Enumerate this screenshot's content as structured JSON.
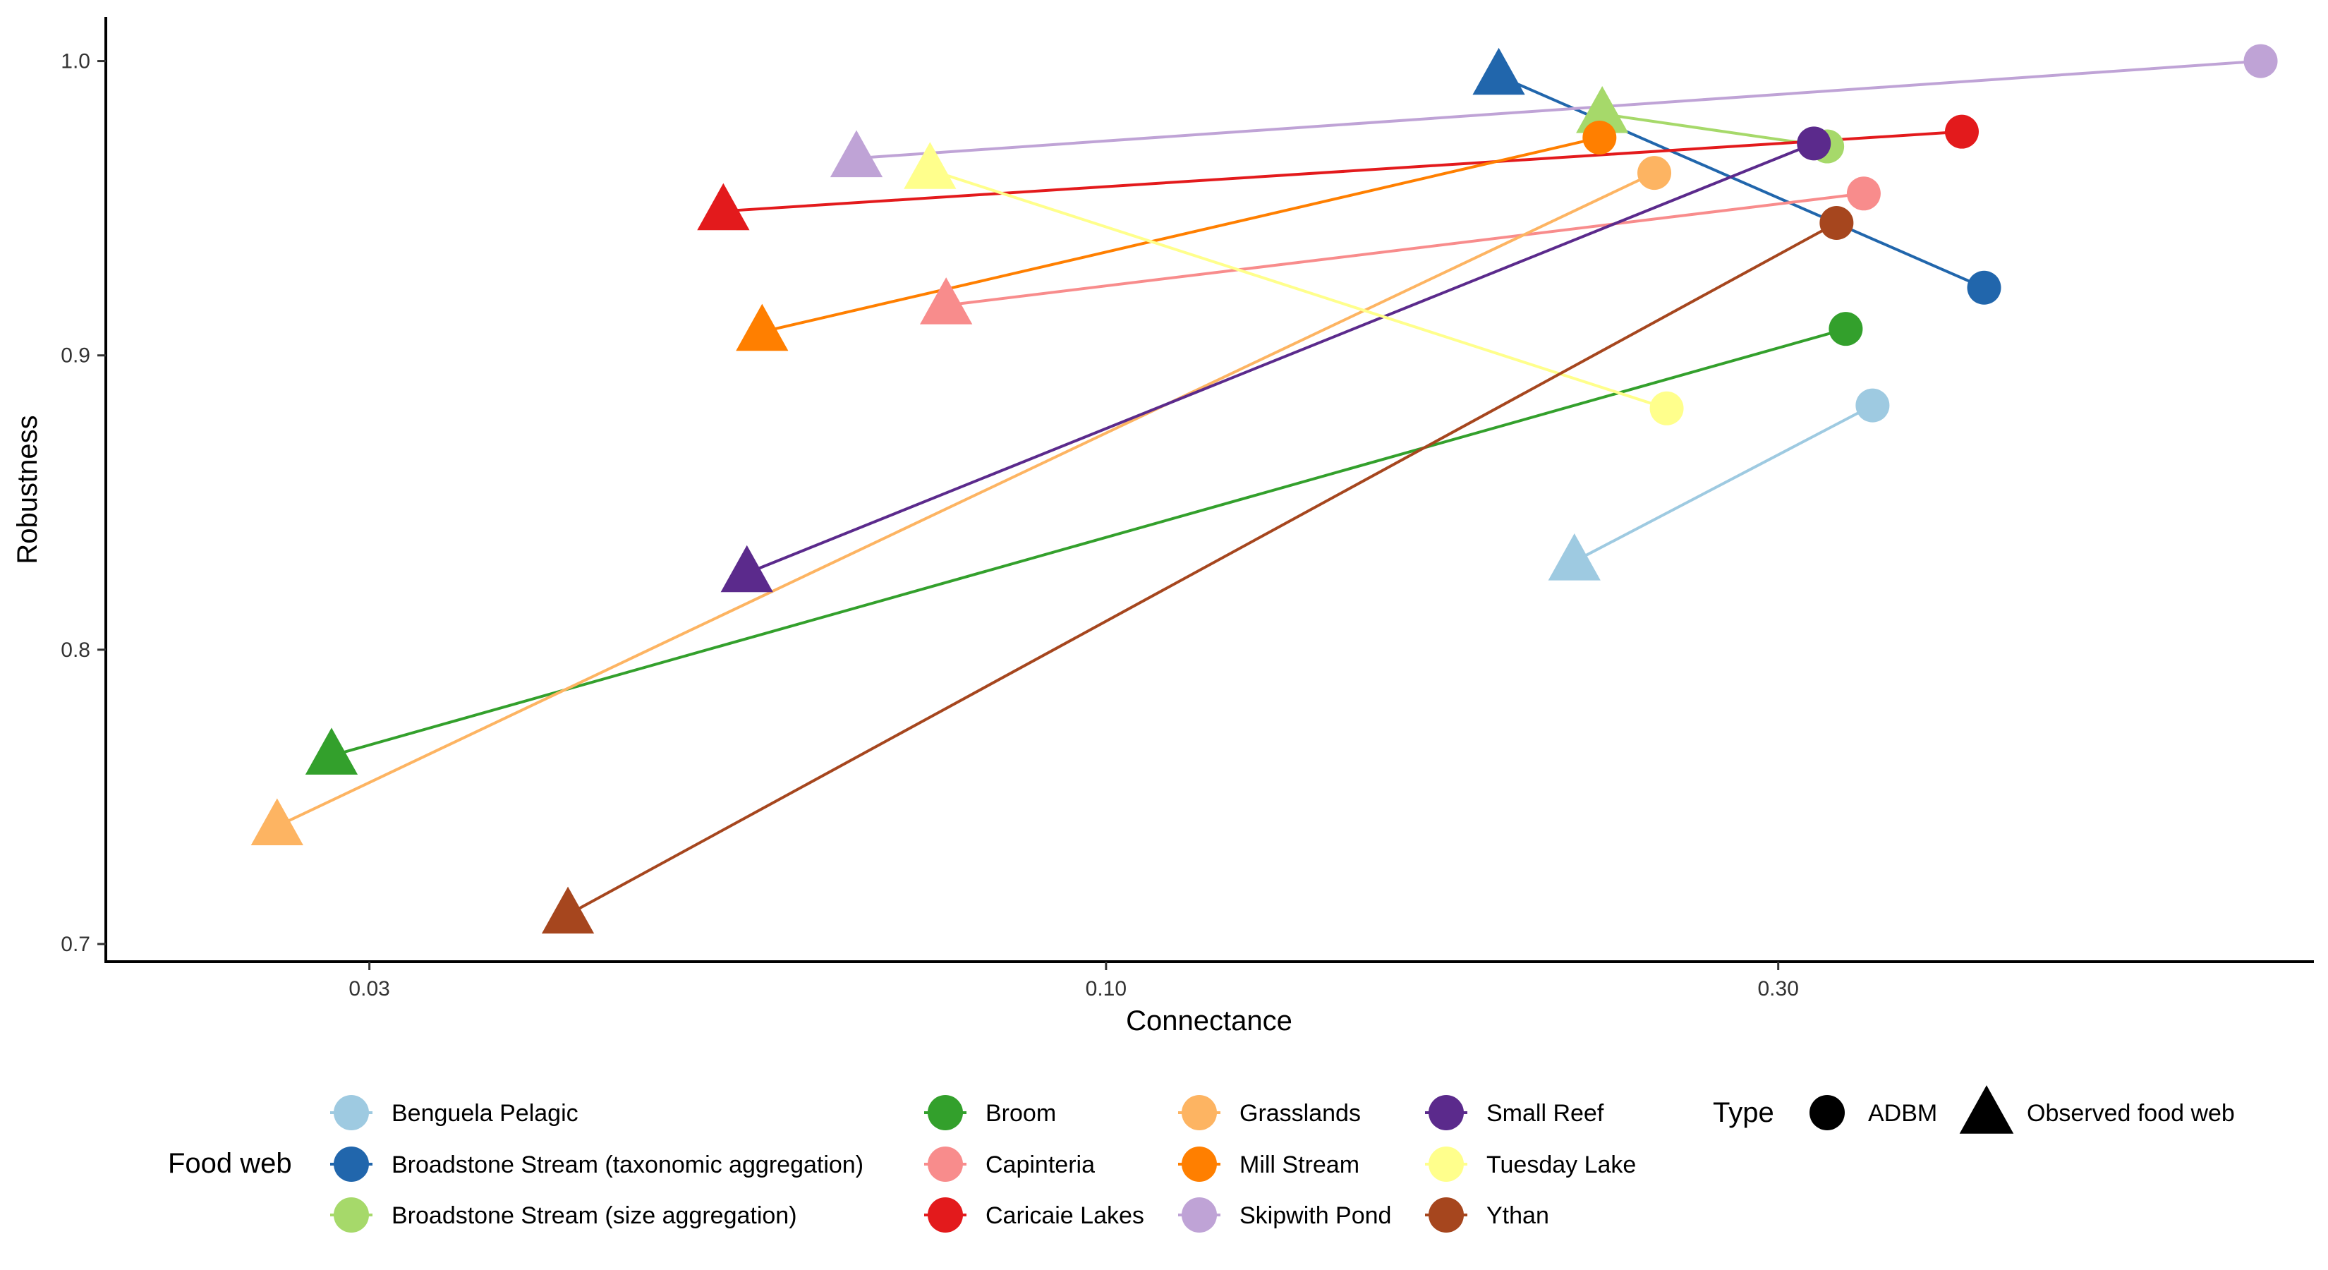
{
  "chart_data": {
    "type": "scatter",
    "xlabel": "Connectance",
    "ylabel": "Robustness",
    "x_scale": "log",
    "xlim": [
      0.0195,
      0.72
    ],
    "ylim": [
      0.694,
      1.015
    ],
    "x_ticks": [
      {
        "value": 0.03,
        "label": "0.03"
      },
      {
        "value": 0.1,
        "label": "0.10"
      },
      {
        "value": 0.3,
        "label": "0.30"
      }
    ],
    "y_ticks": [
      {
        "value": 0.7,
        "label": "0.7"
      },
      {
        "value": 0.8,
        "label": "0.8"
      },
      {
        "value": 0.9,
        "label": "0.9"
      },
      {
        "value": 1.0,
        "label": "1.0"
      }
    ],
    "grid": false,
    "legend_placement": "bottom",
    "legend_food_web_title": "Food web",
    "legend_type_title": "Type",
    "types": [
      {
        "name": "ADBM",
        "shape": "circle"
      },
      {
        "name": "Observed food web",
        "shape": "triangle"
      }
    ],
    "series": [
      {
        "name": "Benguela Pelagic",
        "color": "#9ECAE1",
        "observed": {
          "x": 0.215,
          "y": 0.83
        },
        "adbm": {
          "x": 0.35,
          "y": 0.883
        }
      },
      {
        "name": "Broadstone Stream (taxonomic aggregation)",
        "color": "#2166AC",
        "observed": {
          "x": 0.19,
          "y": 0.995
        },
        "adbm": {
          "x": 0.42,
          "y": 0.923
        }
      },
      {
        "name": "Broadstone Stream (size aggregation)",
        "color": "#A6D96A",
        "observed": {
          "x": 0.225,
          "y": 0.982
        },
        "adbm": {
          "x": 0.325,
          "y": 0.971
        }
      },
      {
        "name": "Broom",
        "color": "#33A02C",
        "observed": {
          "x": 0.0282,
          "y": 0.764
        },
        "adbm": {
          "x": 0.335,
          "y": 0.909
        }
      },
      {
        "name": "Capinteria",
        "color": "#F88C8C",
        "observed": {
          "x": 0.077,
          "y": 0.917
        },
        "adbm": {
          "x": 0.345,
          "y": 0.955
        }
      },
      {
        "name": "Caricaie Lakes",
        "color": "#E31A1C",
        "observed": {
          "x": 0.0535,
          "y": 0.949
        },
        "adbm": {
          "x": 0.405,
          "y": 0.976
        }
      },
      {
        "name": "Grasslands",
        "color": "#FDB462",
        "observed": {
          "x": 0.0258,
          "y": 0.74
        },
        "adbm": {
          "x": 0.245,
          "y": 0.962
        }
      },
      {
        "name": "Mill Stream",
        "color": "#FF7F00",
        "observed": {
          "x": 0.057,
          "y": 0.908
        },
        "adbm": {
          "x": 0.224,
          "y": 0.974
        }
      },
      {
        "name": "Skipwith Pond",
        "color": "#BFA3D6",
        "observed": {
          "x": 0.0665,
          "y": 0.967
        },
        "adbm": {
          "x": 0.66,
          "y": 1.0
        }
      },
      {
        "name": "Small Reef",
        "color": "#5B2A8C",
        "observed": {
          "x": 0.0556,
          "y": 0.826
        },
        "adbm": {
          "x": 0.318,
          "y": 0.972
        }
      },
      {
        "name": "Tuesday Lake",
        "color": "#FFFF8C",
        "observed": {
          "x": 0.075,
          "y": 0.963
        },
        "adbm": {
          "x": 0.25,
          "y": 0.882
        }
      },
      {
        "name": "Ythan",
        "color": "#A6461E",
        "observed": {
          "x": 0.0415,
          "y": 0.71
        },
        "adbm": {
          "x": 0.33,
          "y": 0.945
        }
      }
    ]
  }
}
